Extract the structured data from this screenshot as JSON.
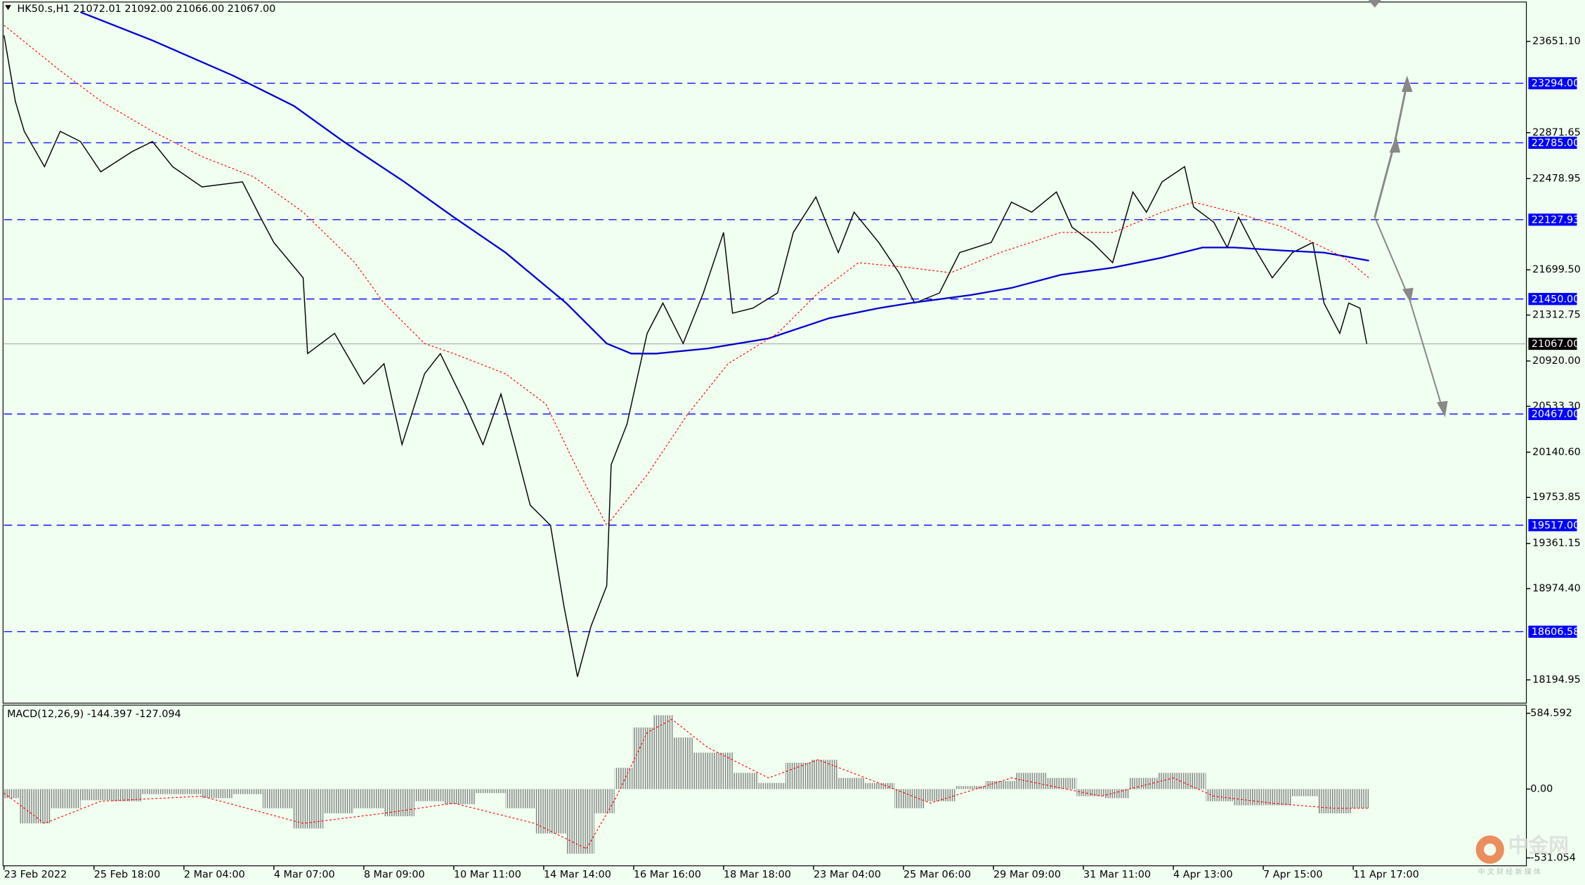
{
  "chart_data": [
    {
      "type": "line",
      "title": "HK50.s,H1  21072.01 21092.00 21066.00 21067.00",
      "xlim": [
        0,
        677
      ],
      "ylim": [
        17996,
        23988
      ],
      "xticks": [
        {
          "value": 0,
          "label": "23 Feb 2022"
        },
        {
          "value": 40,
          "label": "25 Feb 18:00"
        },
        {
          "value": 80,
          "label": "2 Mar 04:00"
        },
        {
          "value": 120,
          "label": "4 Mar 07:00"
        },
        {
          "value": 160,
          "label": "8 Mar 09:00"
        },
        {
          "value": 200,
          "label": "10 Mar 11:00"
        },
        {
          "value": 240,
          "label": "14 Mar 14:00"
        },
        {
          "value": 280,
          "label": "16 Mar 16:00"
        },
        {
          "value": 320,
          "label": "18 Mar 18:00"
        },
        {
          "value": 360,
          "label": "23 Mar 04:00"
        },
        {
          "value": 400,
          "label": "25 Mar 06:00"
        },
        {
          "value": 440,
          "label": "29 Mar 09:00"
        },
        {
          "value": 480,
          "label": "31 Mar 11:00"
        },
        {
          "value": 520,
          "label": "4 Apr 13:00"
        },
        {
          "value": 560,
          "label": "7 Apr 15:00"
        },
        {
          "value": 600,
          "label": "11 Apr 17:00"
        }
      ],
      "yticks": [
        {
          "value": 23651.1,
          "label": "23651.10"
        },
        {
          "value": 22871.65,
          "label": "22871.65"
        },
        {
          "value": 22478.95,
          "label": "22478.95"
        },
        {
          "value": 21699.5,
          "label": "21699.50"
        },
        {
          "value": 21312.75,
          "label": "21312.75"
        },
        {
          "value": 20920,
          "label": "20920.00"
        },
        {
          "value": 20533.3,
          "label": "20533.30"
        },
        {
          "value": 20140.6,
          "label": "20140.60"
        },
        {
          "value": 19753.85,
          "label": "19753.85"
        },
        {
          "value": 19361.15,
          "label": "19361.15"
        },
        {
          "value": 18974.4,
          "label": "18974.40"
        },
        {
          "value": 18194.95,
          "label": "18194.95"
        }
      ],
      "levels": [
        {
          "value": 23294,
          "label": "23294.00"
        },
        {
          "value": 22785,
          "label": "22785.00"
        },
        {
          "value": 22127.93,
          "label": "22127.93"
        },
        {
          "value": 21450,
          "label": "21450.00"
        },
        {
          "value": 20467,
          "label": "20467.00"
        },
        {
          "value": 19517,
          "label": "19517.00"
        },
        {
          "value": 18606.58,
          "label": "18606.58"
        }
      ],
      "level_color": "#0000ff",
      "last_price": {
        "value": 21067,
        "label": "21067.00"
      },
      "series": [
        {
          "color": "#000000",
          "dash": "solid",
          "width": 1,
          "x": [
            0,
            5,
            9,
            18,
            25,
            34,
            43,
            57,
            66,
            75,
            88,
            106,
            114,
            120,
            133,
            135,
            147,
            160,
            169,
            177,
            187,
            194,
            205,
            213,
            221,
            227,
            234,
            243,
            249,
            255,
            261,
            268,
            270,
            277,
            286,
            293,
            302,
            311,
            320,
            324,
            333,
            344,
            351,
            361,
            371,
            378,
            389,
            398,
            405,
            416,
            425,
            439,
            448,
            457,
            468,
            475,
            484,
            493,
            502,
            508,
            515,
            525,
            529,
            538,
            544,
            549,
            556,
            564,
            573,
            582,
            587,
            594,
            598,
            603,
            606
          ],
          "values": [
            23703,
            23142,
            22883,
            22581,
            22883,
            22796,
            22537,
            22710,
            22796,
            22581,
            22408,
            22451,
            22149,
            21933,
            21631,
            20983,
            21156,
            20724,
            20897,
            20206,
            20811,
            20983,
            20552,
            20206,
            20638,
            20206,
            19688,
            19516,
            18825,
            18221,
            18652,
            18998,
            20034,
            20379,
            21156,
            21415,
            21070,
            21501,
            22019,
            21329,
            21372,
            21501,
            22019,
            22322,
            21847,
            22192,
            21933,
            21674,
            21415,
            21501,
            21847,
            21933,
            22278,
            22192,
            22365,
            22063,
            21933,
            21760,
            22365,
            22192,
            22451,
            22581,
            22235,
            22106,
            21890,
            22149,
            21890,
            21631,
            21847,
            21933,
            21415,
            21156,
            21415,
            21372,
            21067
          ]
        },
        {
          "color": "#0000cd",
          "dash": "solid",
          "width": 1.6,
          "x": [
            34,
            66,
            102,
            129,
            151,
            178,
            200,
            223,
            250,
            268,
            279,
            290,
            313,
            340,
            367,
            389,
            403,
            430,
            448,
            470,
            493,
            515,
            533,
            547,
            569,
            587,
            607
          ],
          "values": [
            23902,
            23660,
            23358,
            23099,
            22796,
            22451,
            22149,
            21847,
            21415,
            21070,
            20983,
            20983,
            21027,
            21113,
            21286,
            21372,
            21415,
            21484,
            21545,
            21657,
            21717,
            21804,
            21890,
            21890,
            21864,
            21847,
            21778
          ]
        },
        {
          "color": "#ff0000",
          "dash": "dotted",
          "width": 0.8,
          "x": [
            0,
            25,
            43,
            66,
            88,
            111,
            133,
            156,
            169,
            187,
            200,
            223,
            241,
            254,
            268,
            286,
            304,
            322,
            344,
            362,
            380,
            403,
            421,
            443,
            470,
            493,
            515,
            529,
            547,
            569,
            582,
            596,
            607
          ],
          "values": [
            23789,
            23401,
            23142,
            22883,
            22667,
            22494,
            22192,
            21760,
            21415,
            21070,
            20983,
            20811,
            20552,
            20034,
            19516,
            19947,
            20465,
            20897,
            21156,
            21501,
            21760,
            21717,
            21674,
            21847,
            22019,
            22019,
            22192,
            22278,
            22192,
            22063,
            21933,
            21804,
            21631
          ]
        }
      ]
    },
    {
      "type": "bar",
      "title": "MACD(12,26,9) -144.397 -127.094",
      "xlim": [
        0,
        677
      ],
      "ylim": [
        -592,
        655
      ],
      "yticks": [
        584.592,
        {
          "value": 0,
          "label": "0.00"
        },
        -531.054
      ],
      "histogram": {
        "color": "#808080",
        "x": [
          0,
          14,
          27,
          41,
          54,
          68,
          81,
          95,
          108,
          122,
          135,
          149,
          162,
          176,
          189,
          203,
          216,
          230,
          243,
          257,
          268,
          275,
          284,
          293,
          302,
          311,
          320,
          329,
          342,
          353,
          365,
          376,
          389,
          403,
          416,
          430,
          443,
          457,
          470,
          484,
          495,
          506,
          520,
          529,
          540,
          553,
          567,
          578,
          591,
          607
        ],
        "values": [
          -70,
          -265,
          -148,
          -86,
          -94,
          -39,
          -39,
          -70,
          -39,
          -148,
          -304,
          -187,
          -148,
          -210,
          -94,
          -117,
          -31,
          -148,
          -343,
          -499,
          -187,
          164,
          475,
          569,
          398,
          281,
          281,
          125,
          47,
          203,
          226,
          86,
          47,
          -148,
          -94,
          23,
          62,
          125,
          86,
          -55,
          -70,
          86,
          125,
          125,
          -94,
          -125,
          -125,
          -55,
          -187,
          -148
        ]
      },
      "signal": {
        "color": "#ff0000",
        "dash": "dotted",
        "x": [
          0,
          18,
          43,
          88,
          133,
          169,
          200,
          236,
          259,
          272,
          286,
          297,
          313,
          340,
          362,
          389,
          412,
          448,
          488,
          520,
          538,
          564,
          591,
          607
        ],
        "values": [
          -31,
          -265,
          -94,
          -55,
          -265,
          -187,
          -109,
          -265,
          -460,
          -70,
          436,
          538,
          320,
          86,
          226,
          47,
          -109,
          86,
          -55,
          86,
          -55,
          -109,
          -148,
          -148
        ]
      }
    }
  ],
  "watermark": {
    "title": "中金网",
    "subtitle": "中 文 财 经 新 媒 体"
  }
}
